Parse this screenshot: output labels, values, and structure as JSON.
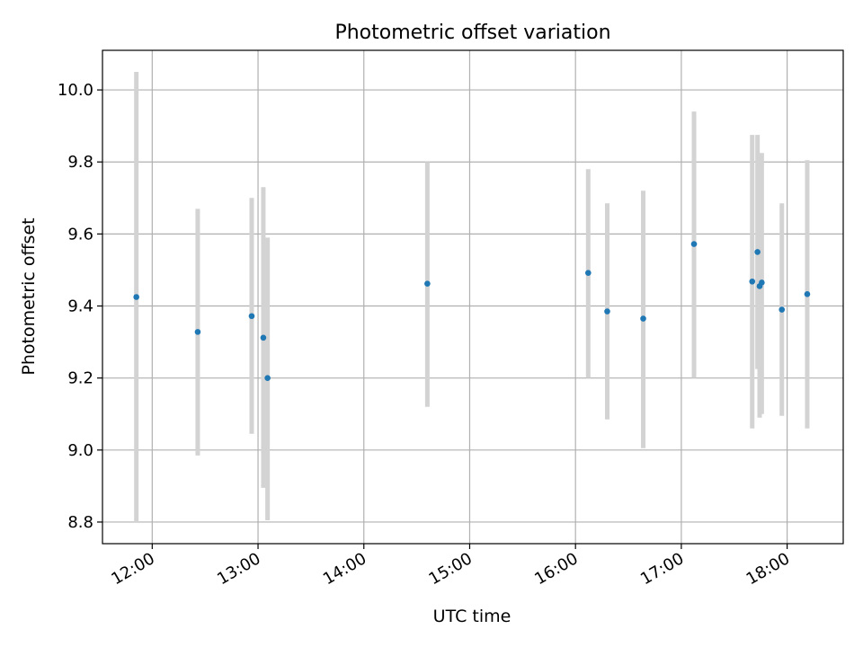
{
  "chart_data": {
    "type": "scatter",
    "title": "Photometric offset variation",
    "xlabel": "UTC time",
    "ylabel": "Photometric offset",
    "x_unit": "hours UTC",
    "xlim": [
      11.53,
      18.53
    ],
    "ylim": [
      8.74,
      10.11
    ],
    "x_ticks": [
      {
        "value": 12,
        "label": "12:00"
      },
      {
        "value": 13,
        "label": "13:00"
      },
      {
        "value": 14,
        "label": "14:00"
      },
      {
        "value": 15,
        "label": "15:00"
      },
      {
        "value": 16,
        "label": "16:00"
      },
      {
        "value": 17,
        "label": "17:00"
      },
      {
        "value": 18,
        "label": "18:00"
      }
    ],
    "y_ticks": [
      {
        "value": 8.8,
        "label": "8.8"
      },
      {
        "value": 9.0,
        "label": "9.0"
      },
      {
        "value": 9.2,
        "label": "9.2"
      },
      {
        "value": 9.4,
        "label": "9.4"
      },
      {
        "value": 9.6,
        "label": "9.6"
      },
      {
        "value": 9.8,
        "label": "9.8"
      },
      {
        "value": 10.0,
        "label": "10.0"
      }
    ],
    "grid": true,
    "point_color": "#1f77b4",
    "errorbar_color": "#d3d3d3",
    "points": [
      {
        "x": 11.85,
        "y": 9.425,
        "ylo": 8.8,
        "yhi": 10.05
      },
      {
        "x": 12.43,
        "y": 9.328,
        "ylo": 8.985,
        "yhi": 9.67
      },
      {
        "x": 12.94,
        "y": 9.372,
        "ylo": 9.045,
        "yhi": 9.7
      },
      {
        "x": 13.05,
        "y": 9.312,
        "ylo": 8.895,
        "yhi": 9.73
      },
      {
        "x": 13.09,
        "y": 9.2,
        "ylo": 8.805,
        "yhi": 9.59
      },
      {
        "x": 14.6,
        "y": 9.462,
        "ylo": 9.12,
        "yhi": 9.8
      },
      {
        "x": 16.12,
        "y": 9.492,
        "ylo": 9.2,
        "yhi": 9.78
      },
      {
        "x": 16.3,
        "y": 9.385,
        "ylo": 9.085,
        "yhi": 9.685
      },
      {
        "x": 16.64,
        "y": 9.365,
        "ylo": 9.005,
        "yhi": 9.72
      },
      {
        "x": 17.12,
        "y": 9.572,
        "ylo": 9.2,
        "yhi": 9.94
      },
      {
        "x": 17.67,
        "y": 9.468,
        "ylo": 9.06,
        "yhi": 9.875
      },
      {
        "x": 17.72,
        "y": 9.55,
        "ylo": 9.225,
        "yhi": 9.875
      },
      {
        "x": 17.74,
        "y": 9.455,
        "ylo": 9.09,
        "yhi": 9.82
      },
      {
        "x": 17.76,
        "y": 9.465,
        "ylo": 9.1,
        "yhi": 9.825
      },
      {
        "x": 17.95,
        "y": 9.39,
        "ylo": 9.095,
        "yhi": 9.685
      },
      {
        "x": 18.19,
        "y": 9.433,
        "ylo": 9.06,
        "yhi": 9.805
      }
    ]
  }
}
